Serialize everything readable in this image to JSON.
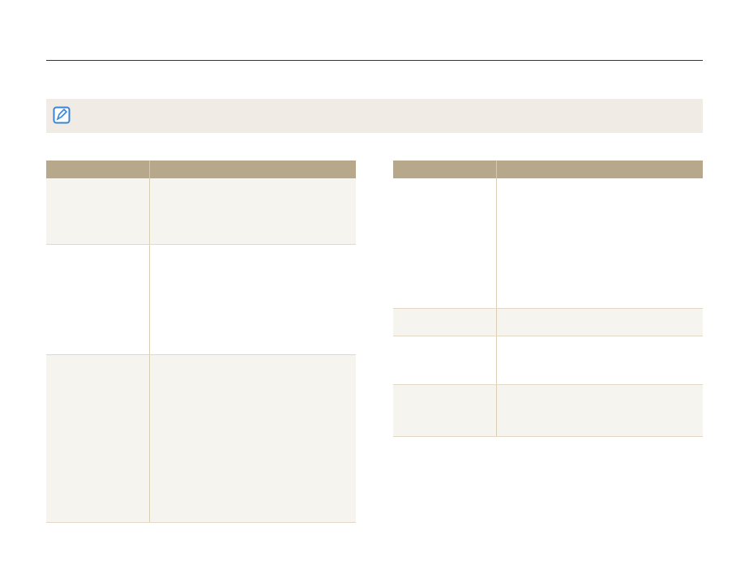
{
  "colors": {
    "header": "#b7a78b",
    "note_bg": "#f0ebe4",
    "row_alt": "#f6f4ef",
    "icon": "#3a84d6"
  },
  "note": {
    "icon": "note-pencil-icon",
    "text": ""
  },
  "left_table": {
    "headers": [
      "",
      ""
    ],
    "rows": [
      [
        "",
        ""
      ],
      [
        "",
        ""
      ],
      [
        "",
        ""
      ]
    ]
  },
  "right_table": {
    "headers": [
      "",
      ""
    ],
    "rows": [
      [
        "",
        ""
      ],
      [
        "",
        ""
      ],
      [
        "",
        ""
      ],
      [
        "",
        ""
      ]
    ]
  }
}
